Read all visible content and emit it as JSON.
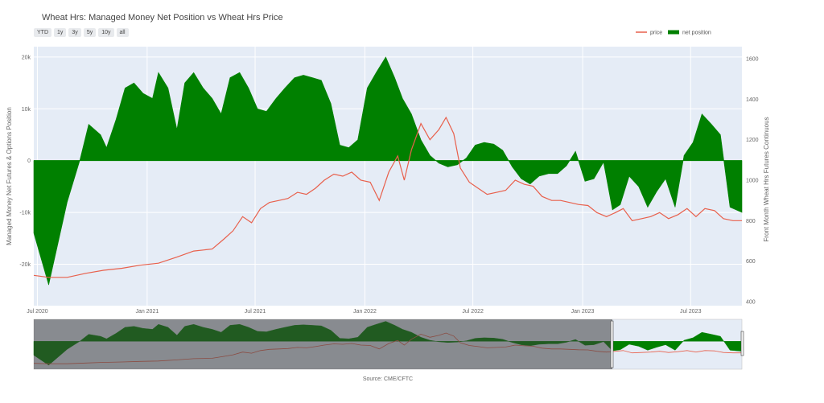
{
  "chart_data": {
    "type": "area+line",
    "title": "Wheat Hrs: Managed Money Net Position vs Wheat Hrs Price",
    "range_buttons": [
      "YTD",
      "1y",
      "3y",
      "5y",
      "10y",
      "all"
    ],
    "legend": [
      {
        "name": "price",
        "color": "#e8604c"
      },
      {
        "name": "net position",
        "color": "#008000"
      }
    ],
    "y_left": {
      "label": "Managed Money Net Futures & Options Position",
      "range": [
        -28000,
        22000
      ],
      "ticks": [
        {
          "v": -20000,
          "t": "-20k"
        },
        {
          "v": -10000,
          "t": "-10k"
        },
        {
          "v": 0,
          "t": "0"
        },
        {
          "v": 10000,
          "t": "10k"
        },
        {
          "v": 20000,
          "t": "20k"
        }
      ]
    },
    "y_right": {
      "label": "Front Month Wheat Hrs Futures Continuous",
      "range": [
        380,
        1660
      ],
      "ticks": [
        400,
        600,
        800,
        1000,
        1200,
        1400,
        1600
      ]
    },
    "x_ticks": [
      {
        "d": "2020-07-01",
        "t": "Jul 2020"
      },
      {
        "d": "2021-01-01",
        "t": "Jan 2021"
      },
      {
        "d": "2021-07-01",
        "t": "Jul 2021"
      },
      {
        "d": "2022-01-01",
        "t": "Jan 2022"
      },
      {
        "d": "2022-07-01",
        "t": "Jul 2022"
      },
      {
        "d": "2023-01-01",
        "t": "Jan 2023"
      },
      {
        "d": "2023-07-01",
        "t": "Jul 2023"
      }
    ],
    "x_range": [
      "2020-06-25",
      "2023-09-25"
    ],
    "source": "Source: CME/CFTC",
    "series": [
      {
        "name": "net position",
        "type": "area",
        "color": "#008000",
        "x": [
          "2020-06-25",
          "2020-07-20",
          "2020-08-20",
          "2020-09-10",
          "2020-09-25",
          "2020-10-15",
          "2020-10-25",
          "2020-11-10",
          "2020-11-25",
          "2020-12-10",
          "2020-12-25",
          "2021-01-10",
          "2021-01-20",
          "2021-02-05",
          "2021-02-20",
          "2021-03-05",
          "2021-03-20",
          "2021-04-05",
          "2021-04-20",
          "2021-05-05",
          "2021-05-20",
          "2021-06-05",
          "2021-06-20",
          "2021-07-05",
          "2021-07-20",
          "2021-08-05",
          "2021-08-20",
          "2021-09-05",
          "2021-09-20",
          "2021-10-05",
          "2021-10-20",
          "2021-11-05",
          "2021-11-20",
          "2021-12-05",
          "2021-12-20",
          "2022-01-05",
          "2022-01-20",
          "2022-02-05",
          "2022-02-20",
          "2022-03-05",
          "2022-03-20",
          "2022-04-05",
          "2022-04-20",
          "2022-05-05",
          "2022-05-20",
          "2022-06-05",
          "2022-06-20",
          "2022-07-05",
          "2022-07-20",
          "2022-08-05",
          "2022-08-20",
          "2022-09-05",
          "2022-09-20",
          "2022-10-05",
          "2022-10-20",
          "2022-11-05",
          "2022-11-20",
          "2022-12-05",
          "2022-12-20",
          "2023-01-05",
          "2023-01-20",
          "2023-02-05",
          "2023-02-20",
          "2023-03-05",
          "2023-03-20",
          "2023-04-05",
          "2023-04-20",
          "2023-05-05",
          "2023-05-20",
          "2023-06-05",
          "2023-06-20",
          "2023-07-05",
          "2023-07-20",
          "2023-08-05",
          "2023-08-20",
          "2023-09-05",
          "2023-09-25"
        ],
        "values": [
          -14000,
          -24000,
          -8000,
          0,
          7000,
          5000,
          2500,
          8000,
          14000,
          15000,
          13000,
          12000,
          17000,
          14000,
          6000,
          15000,
          17000,
          14000,
          12000,
          9000,
          16000,
          17000,
          14000,
          10000,
          9500,
          12000,
          14000,
          16000,
          16500,
          16000,
          15500,
          11000,
          3000,
          2500,
          4000,
          14000,
          17000,
          20000,
          16000,
          12000,
          9000,
          4000,
          1000,
          -500,
          -1200,
          -800,
          500,
          3000,
          3500,
          3200,
          2000,
          -1200,
          -3500,
          -4500,
          -3000,
          -2500,
          -2500,
          -1000,
          1800,
          -4000,
          -3500,
          -300,
          -9500,
          -8500,
          -3000,
          -5000,
          -9000,
          -6000,
          -3500,
          -9000,
          1000,
          3500,
          9000,
          7000,
          5000,
          -9000,
          -10000
        ]
      },
      {
        "name": "price",
        "type": "line",
        "color": "#e8604c",
        "x": [
          "2020-06-25",
          "2020-07-20",
          "2020-08-20",
          "2020-09-20",
          "2020-10-20",
          "2020-11-20",
          "2020-12-20",
          "2021-01-20",
          "2021-02-20",
          "2021-03-20",
          "2021-04-20",
          "2021-05-10",
          "2021-05-25",
          "2021-06-10",
          "2021-06-25",
          "2021-07-10",
          "2021-07-25",
          "2021-08-10",
          "2021-08-25",
          "2021-09-10",
          "2021-09-25",
          "2021-10-10",
          "2021-10-25",
          "2021-11-10",
          "2021-11-25",
          "2021-12-10",
          "2021-12-25",
          "2022-01-10",
          "2022-01-25",
          "2022-02-10",
          "2022-02-25",
          "2022-03-08",
          "2022-03-20",
          "2022-04-05",
          "2022-04-20",
          "2022-05-05",
          "2022-05-17",
          "2022-05-30",
          "2022-06-10",
          "2022-06-25",
          "2022-07-10",
          "2022-07-25",
          "2022-08-10",
          "2022-08-25",
          "2022-09-10",
          "2022-09-25",
          "2022-10-10",
          "2022-10-25",
          "2022-11-10",
          "2022-11-25",
          "2022-12-10",
          "2022-12-25",
          "2023-01-10",
          "2023-01-25",
          "2023-02-10",
          "2023-02-25",
          "2023-03-10",
          "2023-03-25",
          "2023-04-10",
          "2023-04-25",
          "2023-05-10",
          "2023-05-25",
          "2023-06-10",
          "2023-06-25",
          "2023-07-10",
          "2023-07-25",
          "2023-08-10",
          "2023-08-25",
          "2023-09-10",
          "2023-09-25"
        ],
        "values": [
          530,
          520,
          520,
          540,
          555,
          565,
          580,
          590,
          620,
          650,
          660,
          710,
          750,
          820,
          790,
          860,
          890,
          900,
          910,
          940,
          930,
          960,
          1000,
          1030,
          1020,
          1040,
          1000,
          990,
          900,
          1040,
          1120,
          1000,
          1150,
          1280,
          1200,
          1250,
          1310,
          1230,
          1060,
          990,
          960,
          930,
          940,
          950,
          1000,
          980,
          970,
          920,
          900,
          900,
          890,
          880,
          875,
          840,
          820,
          840,
          860,
          800,
          810,
          820,
          840,
          810,
          830,
          860,
          820,
          860,
          850,
          810,
          800,
          800
        ]
      }
    ]
  }
}
